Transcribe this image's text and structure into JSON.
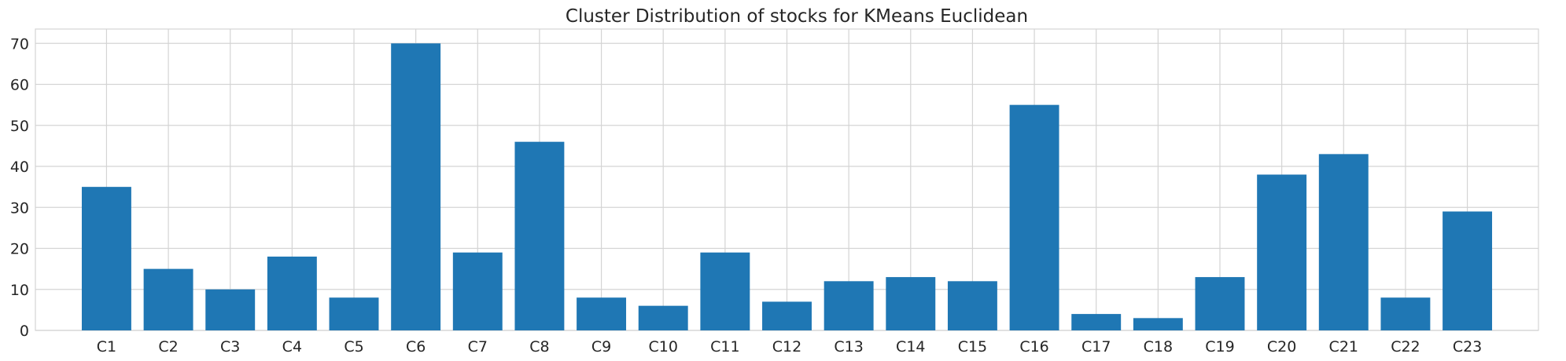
{
  "chart_data": {
    "type": "bar",
    "title": "Cluster Distribution of stocks for KMeans Euclidean",
    "xlabel": "",
    "ylabel": "",
    "categories": [
      "C1",
      "C2",
      "C3",
      "C4",
      "C5",
      "C6",
      "C7",
      "C8",
      "C9",
      "C10",
      "C11",
      "C12",
      "C13",
      "C14",
      "C15",
      "C16",
      "C17",
      "C18",
      "C19",
      "C20",
      "C21",
      "C22",
      "C23"
    ],
    "values": [
      35,
      15,
      10,
      18,
      8,
      70,
      19,
      46,
      8,
      6,
      19,
      7,
      12,
      13,
      12,
      55,
      4,
      3,
      13,
      38,
      43,
      8,
      29
    ],
    "ylim": [
      0,
      73.5
    ],
    "yticks": [
      0,
      10,
      20,
      30,
      40,
      50,
      60,
      70
    ],
    "grid": true,
    "bar_color": "#1f77b4",
    "grid_color": "#d4d4d4"
  }
}
